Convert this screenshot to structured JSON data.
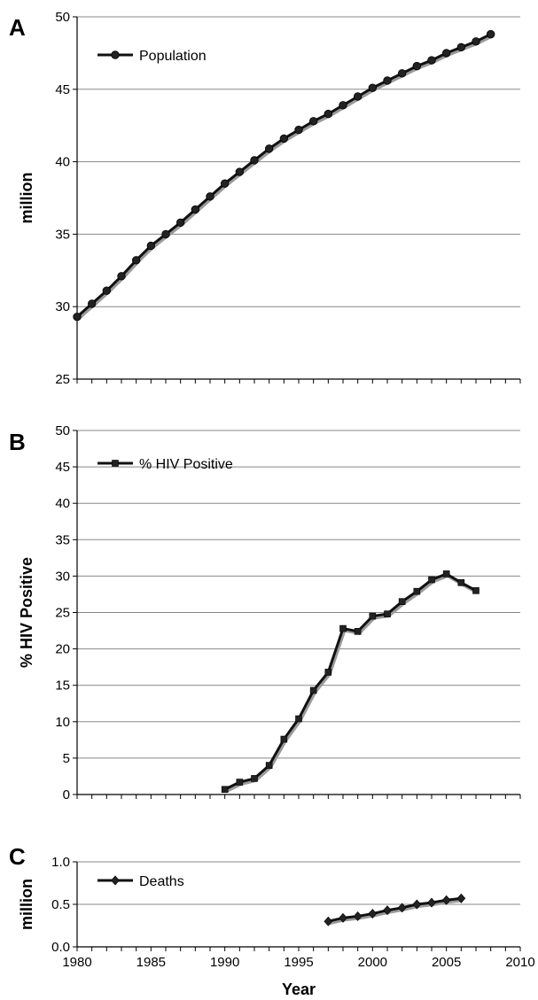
{
  "figure": {
    "xlabel": "Year",
    "xlim": [
      1980,
      2010
    ],
    "xticks": [
      1980,
      1985,
      1990,
      1995,
      2000,
      2005,
      2010
    ]
  },
  "chart_data": [
    {
      "type": "line",
      "panel": "A",
      "ylabel": "million",
      "ylim": [
        25,
        50
      ],
      "yticks": [
        25,
        30,
        35,
        40,
        45,
        50
      ],
      "yticks_text": [
        "25",
        "30",
        "35",
        "40",
        "45",
        "50"
      ],
      "grid": true,
      "legend_position": "top-left",
      "marker": "circle",
      "series": [
        {
          "name": "Population",
          "x": [
            1980,
            1981,
            1982,
            1983,
            1984,
            1985,
            1986,
            1987,
            1988,
            1989,
            1990,
            1991,
            1992,
            1993,
            1994,
            1995,
            1996,
            1997,
            1998,
            1999,
            2000,
            2001,
            2002,
            2003,
            2004,
            2005,
            2006,
            2007,
            2008
          ],
          "y": [
            29.3,
            30.2,
            31.1,
            32.1,
            33.2,
            34.2,
            35.0,
            35.8,
            36.7,
            37.6,
            38.5,
            39.3,
            40.1,
            40.9,
            41.6,
            42.2,
            42.8,
            43.3,
            43.9,
            44.5,
            45.1,
            45.6,
            46.1,
            46.6,
            47.0,
            47.5,
            47.9,
            48.3,
            48.8
          ]
        }
      ]
    },
    {
      "type": "line",
      "panel": "B",
      "ylabel": "% HIV Positive",
      "ylim": [
        0,
        50
      ],
      "yticks": [
        0,
        5,
        10,
        15,
        20,
        25,
        30,
        35,
        40,
        45,
        50
      ],
      "yticks_text": [
        "0",
        "5",
        "10",
        "15",
        "20",
        "25",
        "30",
        "35",
        "40",
        "45",
        "50"
      ],
      "grid": true,
      "legend_position": "top-left",
      "marker": "square",
      "series": [
        {
          "name": "% HIV Positive",
          "x": [
            1990,
            1991,
            1992,
            1993,
            1994,
            1995,
            1996,
            1997,
            1998,
            1999,
            2000,
            2001,
            2002,
            2003,
            2004,
            2005,
            2006,
            2007
          ],
          "y": [
            0.7,
            1.7,
            2.2,
            4.0,
            7.6,
            10.4,
            14.3,
            16.8,
            22.8,
            22.4,
            24.5,
            24.8,
            26.5,
            27.9,
            29.5,
            30.3,
            29.1,
            28.0
          ]
        }
      ]
    },
    {
      "type": "line",
      "panel": "C",
      "ylabel": "million",
      "ylim": [
        0,
        1.0
      ],
      "yticks": [
        0,
        0.5,
        1.0
      ],
      "yticks_text": [
        "0.0",
        "0.5",
        "1.0"
      ],
      "grid": true,
      "legend_position": "top-left",
      "marker": "diamond",
      "series": [
        {
          "name": "Deaths",
          "x": [
            1997,
            1998,
            1999,
            2000,
            2001,
            2002,
            2003,
            2004,
            2005,
            2006
          ],
          "y": [
            0.3,
            0.34,
            0.36,
            0.39,
            0.43,
            0.46,
            0.5,
            0.52,
            0.55,
            0.57
          ]
        }
      ]
    }
  ]
}
